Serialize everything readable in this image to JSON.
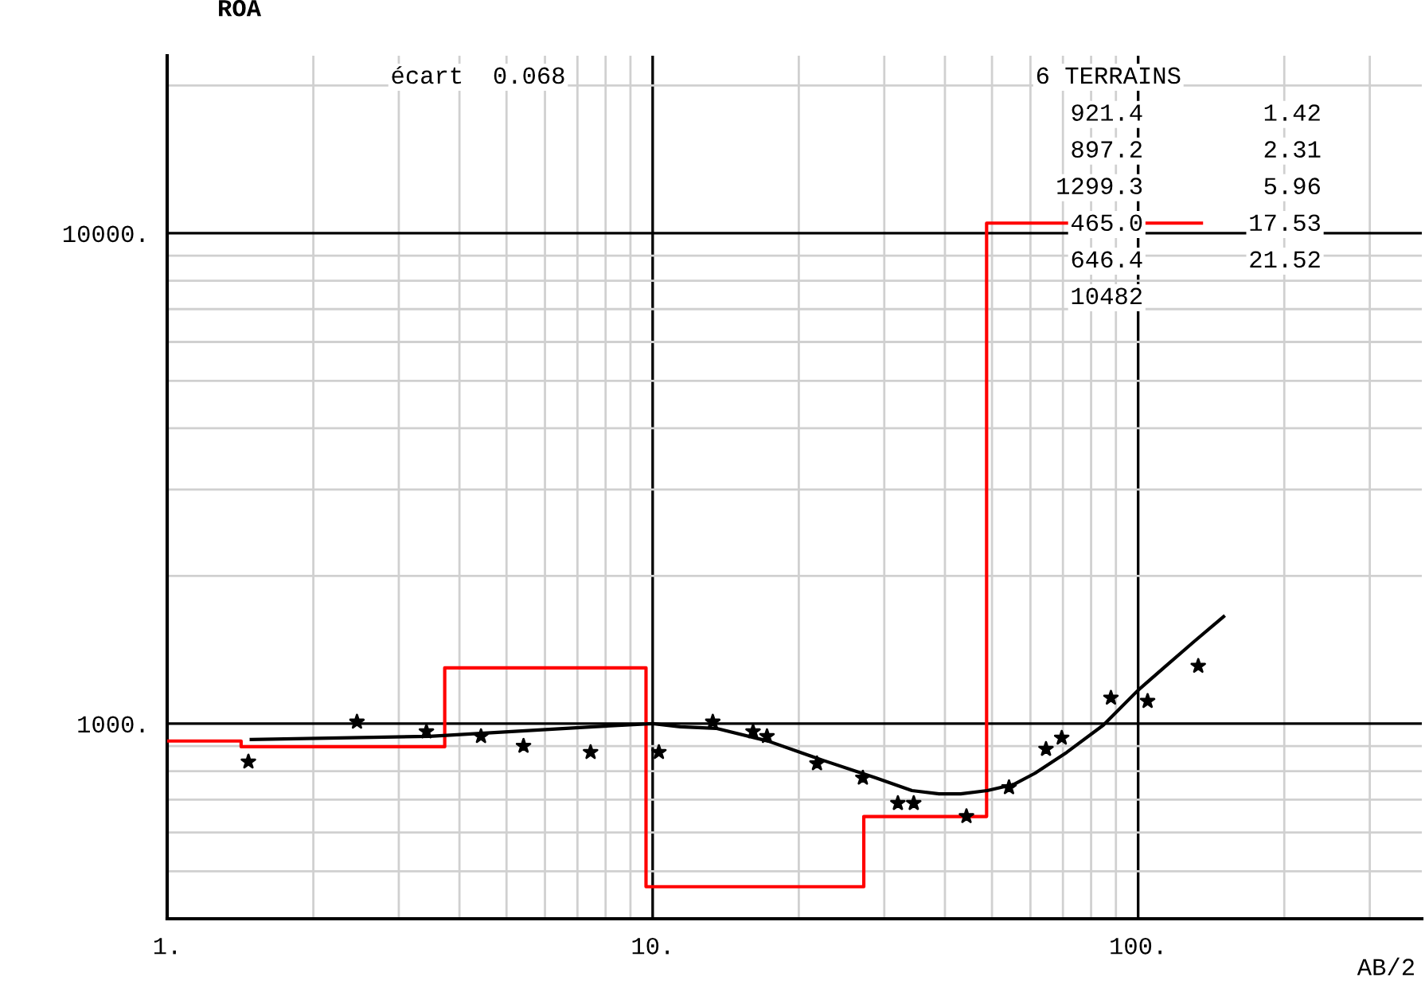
{
  "chart_data": {
    "type": "line",
    "xlabel": "AB/2",
    "ylabel": "ROA",
    "log": "xy",
    "xlim": [
      1,
      384
    ],
    "ylim": [
      400,
      23000
    ],
    "xticks": [
      {
        "value": 1,
        "label": "1."
      },
      {
        "value": 10,
        "label": "10."
      },
      {
        "value": 100,
        "label": "100."
      }
    ],
    "yticks": [
      {
        "value": 1000,
        "label": "1000."
      },
      {
        "value": 10000,
        "label": "10000."
      }
    ],
    "grid": true,
    "legend": false,
    "annotations": [
      "écart  0.068",
      "6 TERRAINS",
      "921.4",
      "1.42",
      "897.2",
      "2.31",
      "1299.3",
      "5.96",
      "465.0",
      "17.53",
      "646.4",
      "21.52",
      "10482"
    ],
    "series": [
      {
        "type": "step",
        "color": "#ff0000",
        "x": [
          1,
          1.42,
          3.73,
          9.69,
          27.22,
          48.74,
          135
        ],
        "values": [
          921.4,
          897.2,
          1299.3,
          465.0,
          646.4,
          10482,
          10482
        ]
      },
      {
        "color": "#000000",
        "x": [
          1.49,
          3.47,
          7.55,
          10,
          11.4,
          13.5,
          17.3,
          22.4,
          28.8,
          34.2,
          38.9,
          43.1,
          48.9,
          55.5,
          61.3,
          71.3,
          84.8,
          100,
          114,
          130,
          150
        ],
        "values": [
          928,
          942,
          985,
          1000,
          985,
          978,
          921,
          842,
          775,
          730,
          719,
          719,
          730,
          752,
          792,
          874,
          993,
          1170,
          1310,
          1466,
          1653
        ]
      },
      {
        "type": "scatter",
        "color": "#000000",
        "marker": "star",
        "x": [
          1.47,
          2.46,
          3.42,
          4.43,
          5.42,
          7.45,
          10.3,
          13.3,
          16.1,
          17.2,
          21.8,
          27.1,
          32.0,
          34.5,
          44.3,
          54.2,
          64.6,
          69.6,
          87.9,
          104.6,
          133
        ],
        "values": [
          836,
          1008,
          963,
          942,
          900,
          874,
          874,
          1008,
          963,
          942,
          829,
          775,
          688,
          688,
          647,
          741,
          887,
          935,
          1128,
          1111,
          1310
        ]
      }
    ]
  }
}
